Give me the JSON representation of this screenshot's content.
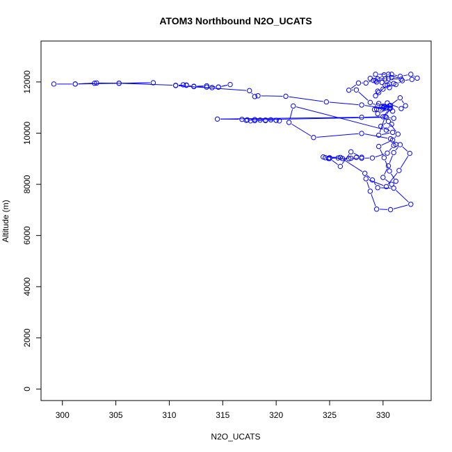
{
  "chart_data": {
    "type": "scatter",
    "title": "ATOM3 Northbound N2O_UCATS",
    "xlabel": "N2O_UCATS",
    "ylabel": "Altitude (m)",
    "xlim": [
      298,
      334.5
    ],
    "ylim": [
      -450,
      13600
    ],
    "xticks": [
      "300",
      "305",
      "310",
      "315",
      "320",
      "325",
      "330"
    ],
    "yticks": [
      "0",
      "2000",
      "4000",
      "6000",
      "8000",
      "10000",
      "12000"
    ],
    "grid": false,
    "colors": {
      "series": "#0000ff",
      "axis": "#000000",
      "background": "#ffffff"
    },
    "series": [
      {
        "name": "",
        "style": "points-and-lines",
        "x": [
          299.2,
          301.2,
          303.0,
          305.3,
          308.5,
          301.2,
          303.2,
          305.3,
          310.6,
          311.3,
          311.6,
          312.3,
          313.5,
          314.0,
          314.6,
          315.7,
          314.6,
          313.5,
          312.3,
          311.6,
          310.6,
          317.5,
          318.0,
          318.3,
          320.9,
          324.7,
          328.0,
          330.6,
          330.0,
          328.0,
          314.5,
          316.8,
          317.2,
          317.6,
          318.0,
          318.5,
          319.0,
          319.5,
          320.0,
          320.3,
          320.0,
          319.0,
          318.0,
          317.3,
          330.3,
          331.0,
          330.8,
          330.3,
          321.6,
          321.2,
          323.5,
          328.0,
          330.7,
          331.2,
          331.0,
          330.4,
          329.0,
          328.0,
          326.8,
          325.0,
          324.6,
          324.9,
          325.8,
          326.2,
          327.0,
          327.5,
          328.0,
          327.0,
          326.0,
          325.0,
          324.4,
          326.0,
          328.3,
          329.0,
          329.5,
          331.0,
          332.6,
          330.7,
          329.4,
          328.8,
          328.4,
          330.3,
          331.5,
          332.5,
          331.6,
          331.0,
          330.5,
          330.0,
          330.8,
          331.2,
          330.6,
          330.1,
          329.6,
          330.9,
          331.4,
          330.5,
          329.8,
          330.9,
          329.6,
          330.2,
          330.7,
          329.5,
          330.0,
          330.7,
          329.6,
          330.3,
          330.9,
          330.1,
          329.4,
          330.6,
          330.1,
          329.2,
          330.6,
          331.6,
          332.1,
          331.7,
          330.4,
          329.5,
          328.8,
          327.5,
          326.8,
          327.7,
          328.4,
          329.1,
          329.5,
          330.5,
          331.7,
          330.5,
          329.3,
          328.8,
          329.3,
          330.1,
          330.8,
          331.6,
          332.6,
          333.2,
          332.7,
          331.8,
          331.2,
          330.6,
          330.0,
          329.5,
          329.3,
          329.6,
          330.4,
          331.0,
          330.6,
          330.2,
          329.9,
          329.4,
          330.2,
          330.8
        ],
        "y": [
          11920,
          11920,
          11950,
          11950,
          11970,
          11920,
          11960,
          11950,
          11870,
          11890,
          11870,
          11820,
          11800,
          11780,
          11800,
          11900,
          11800,
          11850,
          11830,
          11880,
          11860,
          11660,
          11430,
          11460,
          11440,
          11220,
          11100,
          10950,
          10640,
          10620,
          10550,
          10540,
          10500,
          10480,
          10530,
          10510,
          10490,
          10520,
          10500,
          10480,
          10500,
          10510,
          10490,
          10520,
          10620,
          10580,
          10350,
          10120,
          11060,
          10420,
          9830,
          9990,
          9780,
          9560,
          9520,
          9220,
          9030,
          9020,
          9000,
          9040,
          9040,
          9010,
          9030,
          9010,
          9020,
          9050,
          9060,
          9270,
          8700,
          9010,
          9070,
          9050,
          8430,
          8170,
          7870,
          7850,
          7220,
          7010,
          7030,
          7730,
          8220,
          7910,
          8540,
          9210,
          9550,
          9240,
          8720,
          8270,
          8000,
          8120,
          8520,
          9040,
          9480,
          9730,
          9960,
          10460,
          10270,
          10030,
          9920,
          10650,
          10980,
          10760,
          10980,
          11080,
          11160,
          10990,
          10860,
          11010,
          10940,
          10990,
          11040,
          10920,
          11070,
          11380,
          11070,
          10960,
          11180,
          11070,
          11200,
          11690,
          11680,
          11960,
          11960,
          12060,
          12120,
          12130,
          12110,
          12300,
          12300,
          12140,
          12050,
          12280,
          12300,
          12220,
          12300,
          12150,
          12100,
          12050,
          11900,
          11780,
          11720,
          11640,
          11460,
          11590,
          11880,
          11940,
          11920,
          11880,
          11980,
          12000,
          12120,
          12170
        ]
      }
    ]
  }
}
